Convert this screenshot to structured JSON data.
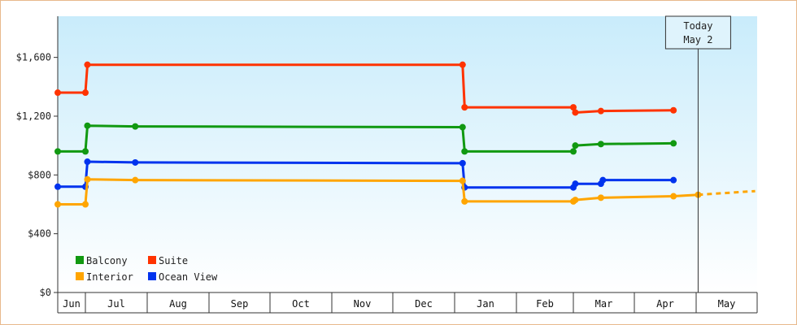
{
  "chart_data": {
    "type": "line",
    "step": true,
    "x_axis": {
      "months": [
        "Jun",
        "Jul",
        "Aug",
        "Sep",
        "Oct",
        "Nov",
        "Dec",
        "Jan",
        "Feb",
        "Mar",
        "Apr",
        "May"
      ]
    },
    "y_axis": {
      "ticks": [
        "$0",
        "$400",
        "$800",
        "$1,200",
        "$1,600"
      ],
      "tick_values": [
        0,
        400,
        800,
        1200,
        1600
      ],
      "ylim": [
        0,
        1880
      ],
      "grid": false
    },
    "today_marker": {
      "line1": "Today",
      "line2": "May 2",
      "date": "May 2"
    },
    "legend_placement": "bottom-left",
    "series": [
      {
        "name": "Suite",
        "color": "#ff3300",
        "points": [
          [
            "Jun 1",
            1360
          ],
          [
            "Jul 1",
            1360
          ],
          [
            "Jul 2",
            1550
          ],
          [
            "Jan 5",
            1550
          ],
          [
            "Jan 6",
            1260
          ],
          [
            "Mar 1",
            1260
          ],
          [
            "Mar 2",
            1225
          ],
          [
            "Mar 15",
            1235
          ],
          [
            "Apr 20",
            1240
          ]
        ]
      },
      {
        "name": "Balcony",
        "color": "#119911",
        "points": [
          [
            "Jun 1",
            960
          ],
          [
            "Jul 1",
            960
          ],
          [
            "Jul 2",
            1135
          ],
          [
            "Jul 26",
            1130
          ],
          [
            "Jan 5",
            1125
          ],
          [
            "Jan 6",
            960
          ],
          [
            "Mar 1",
            960
          ],
          [
            "Mar 2",
            1000
          ],
          [
            "Mar 15",
            1010
          ],
          [
            "Apr 20",
            1015
          ]
        ]
      },
      {
        "name": "Ocean View",
        "color": "#0033ee",
        "points": [
          [
            "Jun 1",
            720
          ],
          [
            "Jul 1",
            720
          ],
          [
            "Jul 2",
            890
          ],
          [
            "Jul 26",
            885
          ],
          [
            "Jan 5",
            880
          ],
          [
            "Jan 6",
            715
          ],
          [
            "Mar 1",
            715
          ],
          [
            "Mar 2",
            740
          ],
          [
            "Mar 15",
            740
          ],
          [
            "Mar 16",
            765
          ],
          [
            "Apr 20",
            765
          ]
        ]
      },
      {
        "name": "Interior",
        "color": "#ffa500",
        "points": [
          [
            "Jun 1",
            600
          ],
          [
            "Jul 1",
            600
          ],
          [
            "Jul 2",
            770
          ],
          [
            "Jul 26",
            765
          ],
          [
            "Jan 5",
            760
          ],
          [
            "Jan 6",
            620
          ],
          [
            "Mar 1",
            620
          ],
          [
            "Mar 2",
            630
          ],
          [
            "Mar 15",
            645
          ],
          [
            "Apr 20",
            655
          ],
          [
            "May 2",
            665
          ]
        ],
        "projection": [
          [
            "May 2",
            665
          ],
          [
            "May 31",
            690
          ]
        ]
      }
    ]
  }
}
